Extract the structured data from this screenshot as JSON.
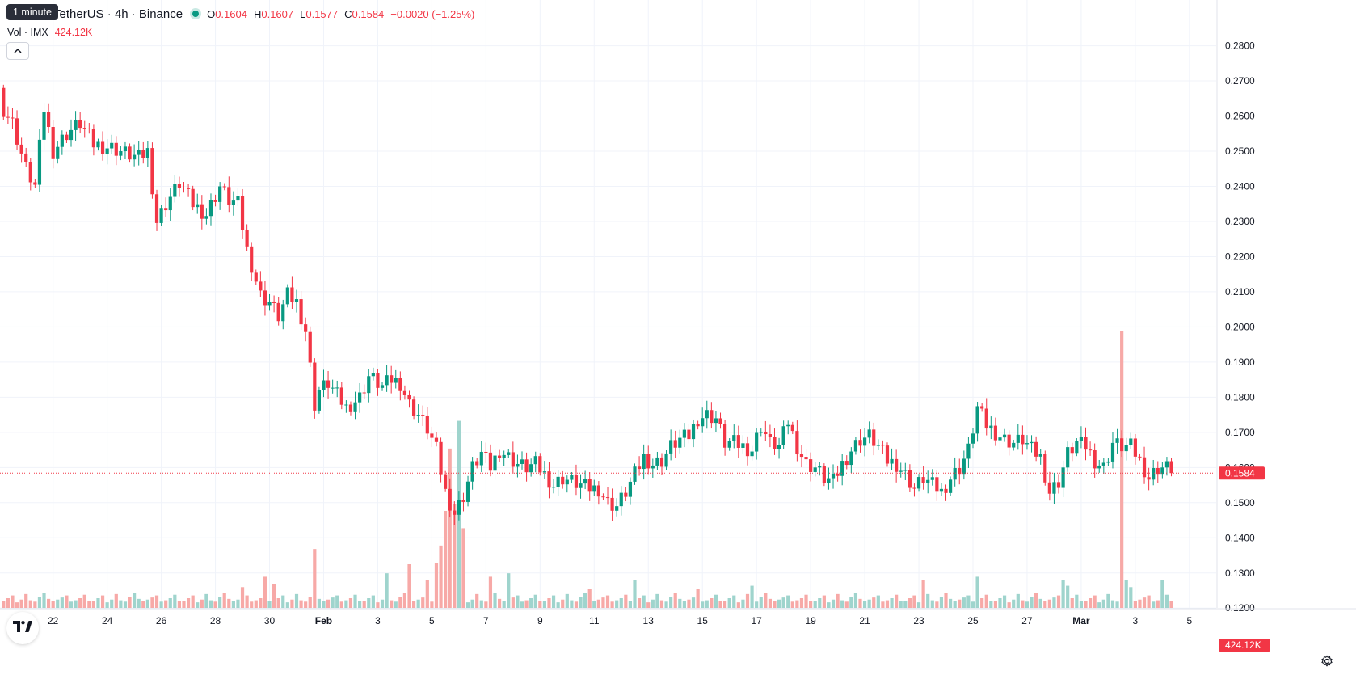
{
  "header": {
    "tooltip": "1 minute",
    "symbol": "TetherUS · 4h · Binance",
    "open_label": "O",
    "open": "0.1604",
    "high_label": "H",
    "high": "0.1607",
    "low_label": "L",
    "low": "0.1577",
    "close_label": "C",
    "close": "0.1584",
    "change": "−0.0020 (−1.25%)"
  },
  "volume_legend": {
    "label": "Vol · IMX",
    "value": "424.12K"
  },
  "colors": {
    "up": "#089981",
    "down": "#f23645",
    "up_volume": "#9fd4cd",
    "down_volume": "#f7a9a7",
    "grid": "#f0f3fa"
  },
  "icons": {
    "collapse": "chevron-up-icon",
    "logo": "tradingview-logo-icon",
    "settings": "gear-icon"
  },
  "chart_data": {
    "type": "candlestick",
    "timeframe": "4h",
    "ylim": [
      0.115,
      0.2845
    ],
    "y_ticks": [
      "0.2800",
      "0.2700",
      "0.2600",
      "0.2500",
      "0.2400",
      "0.2300",
      "0.2200",
      "0.2100",
      "0.2000",
      "0.1900",
      "0.1800",
      "0.1700",
      "0.1600",
      "0.1500",
      "0.1400",
      "0.1300",
      "0.1200"
    ],
    "x_ticks": [
      {
        "label": "22",
        "i": 11,
        "bold": false
      },
      {
        "label": "24",
        "i": 23,
        "bold": false
      },
      {
        "label": "26",
        "i": 35,
        "bold": false
      },
      {
        "label": "28",
        "i": 47,
        "bold": false
      },
      {
        "label": "30",
        "i": 59,
        "bold": false
      },
      {
        "label": "Feb",
        "i": 71,
        "bold": true
      },
      {
        "label": "3",
        "i": 83,
        "bold": false
      },
      {
        "label": "5",
        "i": 95,
        "bold": false
      },
      {
        "label": "7",
        "i": 107,
        "bold": false
      },
      {
        "label": "9",
        "i": 119,
        "bold": false
      },
      {
        "label": "11",
        "i": 131,
        "bold": false
      },
      {
        "label": "13",
        "i": 143,
        "bold": false
      },
      {
        "label": "15",
        "i": 155,
        "bold": false
      },
      {
        "label": "17",
        "i": 167,
        "bold": false
      },
      {
        "label": "19",
        "i": 179,
        "bold": false
      },
      {
        "label": "21",
        "i": 191,
        "bold": false
      },
      {
        "label": "23",
        "i": 203,
        "bold": false
      },
      {
        "label": "25",
        "i": 215,
        "bold": false
      },
      {
        "label": "27",
        "i": 227,
        "bold": false
      },
      {
        "label": "Mar",
        "i": 239,
        "bold": true
      },
      {
        "label": "3",
        "i": 251,
        "bold": false
      },
      {
        "label": "5",
        "i": 263,
        "bold": false
      }
    ],
    "last_price": "0.1584",
    "last_volume": "424.12K",
    "close_anchors": [
      [
        0,
        0.262
      ],
      [
        2,
        0.258
      ],
      [
        5,
        0.245
      ],
      [
        7,
        0.24
      ],
      [
        9,
        0.262
      ],
      [
        11,
        0.25
      ],
      [
        14,
        0.255
      ],
      [
        17,
        0.258
      ],
      [
        20,
        0.252
      ],
      [
        24,
        0.251
      ],
      [
        28,
        0.249
      ],
      [
        30,
        0.248
      ],
      [
        32,
        0.25
      ],
      [
        34,
        0.23
      ],
      [
        36,
        0.235
      ],
      [
        39,
        0.241
      ],
      [
        42,
        0.235
      ],
      [
        45,
        0.232
      ],
      [
        48,
        0.24
      ],
      [
        50,
        0.236
      ],
      [
        52,
        0.235
      ],
      [
        54,
        0.222
      ],
      [
        57,
        0.209
      ],
      [
        59,
        0.207
      ],
      [
        61,
        0.203
      ],
      [
        63,
        0.209
      ],
      [
        65,
        0.207
      ],
      [
        67,
        0.199
      ],
      [
        69,
        0.178
      ],
      [
        70,
        0.182
      ],
      [
        72,
        0.184
      ],
      [
        76,
        0.177
      ],
      [
        79,
        0.18
      ],
      [
        81,
        0.186
      ],
      [
        84,
        0.183
      ],
      [
        86,
        0.185
      ],
      [
        88,
        0.184
      ],
      [
        90,
        0.178
      ],
      [
        92,
        0.175
      ],
      [
        94,
        0.171
      ],
      [
        96,
        0.165
      ],
      [
        98,
        0.153
      ],
      [
        100,
        0.147
      ],
      [
        102,
        0.152
      ],
      [
        104,
        0.16
      ],
      [
        106,
        0.164
      ],
      [
        108,
        0.16
      ],
      [
        110,
        0.165
      ],
      [
        112,
        0.163
      ],
      [
        114,
        0.161
      ],
      [
        116,
        0.16
      ],
      [
        118,
        0.161
      ],
      [
        120,
        0.158
      ],
      [
        122,
        0.155
      ],
      [
        124,
        0.157
      ],
      [
        126,
        0.156
      ],
      [
        128,
        0.155
      ],
      [
        130,
        0.154
      ],
      [
        132,
        0.154
      ],
      [
        134,
        0.15
      ],
      [
        136,
        0.149
      ],
      [
        138,
        0.153
      ],
      [
        140,
        0.158
      ],
      [
        142,
        0.163
      ],
      [
        144,
        0.161
      ],
      [
        146,
        0.162
      ],
      [
        148,
        0.166
      ],
      [
        150,
        0.168
      ],
      [
        152,
        0.169
      ],
      [
        154,
        0.174
      ],
      [
        156,
        0.175
      ],
      [
        158,
        0.174
      ],
      [
        160,
        0.167
      ],
      [
        162,
        0.167
      ],
      [
        164,
        0.166
      ],
      [
        166,
        0.165
      ],
      [
        168,
        0.172
      ],
      [
        170,
        0.167
      ],
      [
        172,
        0.166
      ],
      [
        174,
        0.173
      ],
      [
        176,
        0.166
      ],
      [
        178,
        0.161
      ],
      [
        180,
        0.16
      ],
      [
        182,
        0.157
      ],
      [
        184,
        0.156
      ],
      [
        186,
        0.161
      ],
      [
        188,
        0.165
      ],
      [
        190,
        0.168
      ],
      [
        192,
        0.169
      ],
      [
        194,
        0.166
      ],
      [
        196,
        0.162
      ],
      [
        198,
        0.161
      ],
      [
        200,
        0.158
      ],
      [
        202,
        0.154
      ],
      [
        204,
        0.157
      ],
      [
        206,
        0.155
      ],
      [
        208,
        0.153
      ],
      [
        210,
        0.157
      ],
      [
        212,
        0.16
      ],
      [
        214,
        0.165
      ],
      [
        216,
        0.177
      ],
      [
        218,
        0.172
      ],
      [
        220,
        0.17
      ],
      [
        222,
        0.168
      ],
      [
        224,
        0.167
      ],
      [
        226,
        0.168
      ],
      [
        228,
        0.165
      ],
      [
        230,
        0.163
      ],
      [
        232,
        0.153
      ],
      [
        234,
        0.156
      ],
      [
        236,
        0.164
      ],
      [
        238,
        0.167
      ],
      [
        240,
        0.166
      ],
      [
        242,
        0.162
      ],
      [
        244,
        0.16
      ],
      [
        246,
        0.167
      ],
      [
        248,
        0.166
      ],
      [
        250,
        0.166
      ],
      [
        252,
        0.162
      ],
      [
        254,
        0.157
      ],
      [
        256,
        0.16
      ],
      [
        258,
        0.16
      ],
      [
        259,
        0.1584
      ]
    ],
    "volume_ylim": [
      0,
      420
    ],
    "volume_baseline": [
      10,
      14,
      18,
      8,
      12,
      20,
      11,
      9,
      16,
      22,
      13,
      10,
      12,
      15,
      18,
      9,
      11,
      14,
      19,
      10
    ],
    "volume_spikes": [
      [
        53,
        30
      ],
      [
        58,
        45
      ],
      [
        60,
        35
      ],
      [
        69,
        85
      ],
      [
        85,
        50
      ],
      [
        90,
        63
      ],
      [
        94,
        40
      ],
      [
        96,
        65
      ],
      [
        97,
        90
      ],
      [
        98,
        140
      ],
      [
        99,
        230
      ],
      [
        100,
        150
      ],
      [
        101,
        270
      ],
      [
        102,
        115
      ],
      [
        108,
        45
      ],
      [
        112,
        50
      ],
      [
        130,
        28
      ],
      [
        140,
        40
      ],
      [
        154,
        28
      ],
      [
        166,
        32
      ],
      [
        204,
        40
      ],
      [
        216,
        45
      ],
      [
        235,
        40
      ],
      [
        236,
        32
      ],
      [
        248,
        400
      ],
      [
        249,
        40
      ],
      [
        250,
        30
      ],
      [
        257,
        40
      ]
    ]
  }
}
